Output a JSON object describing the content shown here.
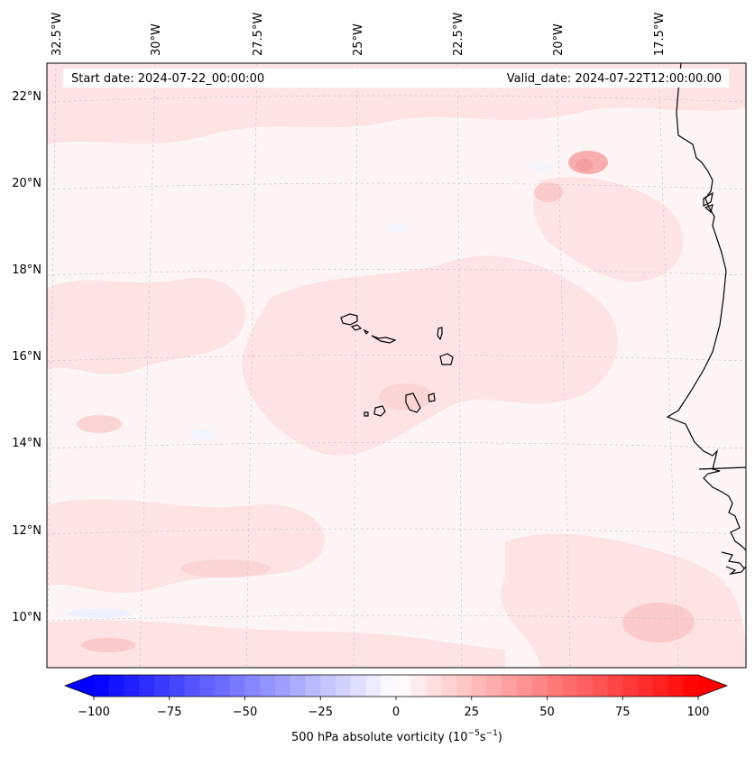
{
  "header": {
    "start_date": "Start date: 2024-07-22_00:00:00",
    "valid_date": "Valid_date: 2024-07-22T12:00:00.00"
  },
  "map": {
    "lon_labels": [
      "32.5°W",
      "30°W",
      "27.5°W",
      "25°W",
      "22.5°W",
      "20°W",
      "17.5°W"
    ],
    "lat_labels": [
      "22°N",
      "20°N",
      "18°N",
      "16°N",
      "14°N",
      "12°N",
      "10°N"
    ],
    "field_colors": {
      "background": "#fdf5f5",
      "light": "#fde3e3",
      "medium": "#fbcaca",
      "strong": "#f8aeae",
      "negative": "#f3f5ff"
    }
  },
  "colorbar": {
    "title": "500 hPa absolute vorticity (10",
    "title_exp1": "−5",
    "title_mid": "s",
    "title_exp2": "−1",
    "title_end": ")",
    "ticks": [
      "−100",
      "−75",
      "−50",
      "−25",
      "0",
      "25",
      "50",
      "75",
      "100"
    ],
    "min_color": "#0000ff",
    "mid_color": "#ffffff",
    "max_color": "#ff0000"
  }
}
